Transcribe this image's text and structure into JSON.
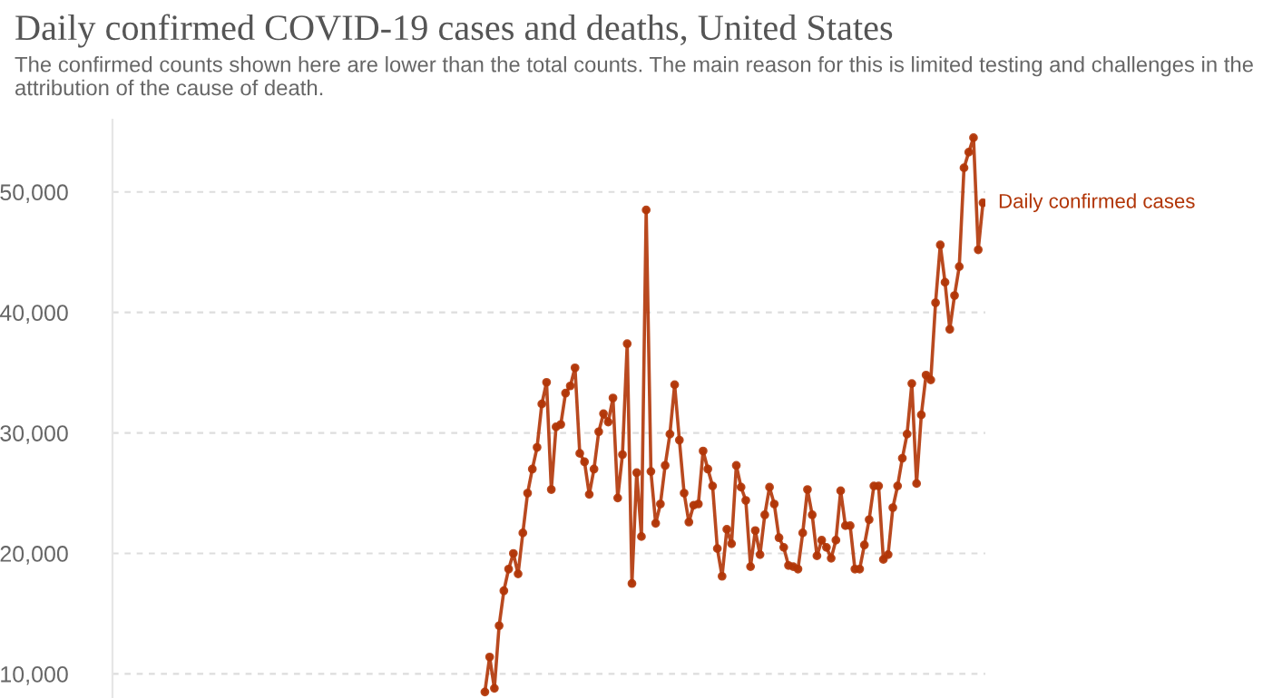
{
  "chart_data": {
    "type": "line",
    "title": "Daily confirmed COVID-19 cases and deaths, United States",
    "subtitle": "The confirmed counts shown here are lower than the total counts. The main reason for this is limited testing and challenges in the attribution of the cause of death.",
    "categories": [
      null,
      null,
      null,
      null,
      null,
      null,
      null,
      null,
      null,
      null,
      null,
      null,
      null,
      null,
      null,
      null,
      null,
      null,
      null,
      null,
      null,
      null,
      null,
      null,
      null,
      null,
      null,
      null,
      null,
      null,
      null,
      null,
      null,
      null,
      null,
      null,
      null,
      null,
      null,
      null,
      null,
      null,
      null,
      null,
      null,
      null,
      null,
      null,
      null,
      null,
      null,
      null,
      null,
      null,
      null,
      null,
      null,
      null,
      null,
      null,
      null,
      null,
      null,
      null,
      null,
      null,
      null,
      null,
      null,
      null,
      null,
      null,
      null,
      null,
      null,
      null,
      null,
      null,
      null,
      null,
      null,
      null,
      null,
      null,
      null,
      null,
      null,
      null,
      null,
      null,
      null,
      null,
      null,
      null,
      null,
      null,
      null,
      null,
      null,
      null,
      null,
      null,
      null,
      null,
      null,
      null,
      null,
      null,
      null,
      null,
      null,
      null,
      null,
      null,
      null,
      null,
      null,
      null,
      null,
      null,
      null,
      null,
      null,
      null,
      null,
      null,
      null,
      null,
      null,
      null,
      null,
      null,
      null,
      null,
      null,
      null,
      null,
      null,
      null,
      null,
      null,
      null,
      null,
      null,
      null,
      null,
      null,
      null,
      null,
      null,
      null,
      null,
      null,
      null,
      null,
      null,
      null,
      null,
      null,
      null,
      null,
      null,
      null,
      null,
      null,
      null,
      null,
      null,
      null,
      null,
      null,
      null,
      null,
      null,
      null,
      null,
      null,
      null,
      null,
      null,
      null,
      null,
      null,
      null
    ],
    "series": [
      {
        "name": "Daily confirmed cases",
        "color": "#b13507",
        "values": [
          null,
          null,
          null,
          null,
          null,
          null,
          null,
          null,
          null,
          null,
          null,
          null,
          null,
          null,
          null,
          null,
          null,
          null,
          null,
          null,
          null,
          null,
          null,
          null,
          null,
          null,
          null,
          null,
          null,
          null,
          null,
          null,
          null,
          null,
          null,
          null,
          null,
          null,
          null,
          null,
          null,
          null,
          null,
          null,
          null,
          null,
          null,
          null,
          null,
          null,
          null,
          null,
          null,
          null,
          null,
          null,
          null,
          null,
          null,
          null,
          null,
          null,
          null,
          null,
          null,
          null,
          null,
          null,
          null,
          null,
          null,
          null,
          null,
          null,
          null,
          null,
          null,
          null,
          8500,
          11400,
          8800,
          14000,
          16900,
          18700,
          20000,
          18300,
          21700,
          25000,
          27000,
          28800,
          32400,
          34200,
          25300,
          30500,
          30700,
          33300,
          33900,
          35400,
          28300,
          27600,
          24900,
          27000,
          30100,
          31600,
          30900,
          32900,
          24600,
          28200,
          37400,
          17500,
          26700,
          21400,
          48500,
          26800,
          22500,
          24100,
          27300,
          29900,
          34000,
          29400,
          25000,
          22600,
          24000,
          24100,
          28500,
          27000,
          25600,
          20400,
          18100,
          22000,
          20800,
          27300,
          25500,
          24400,
          18900,
          21900,
          19900,
          23200,
          25500,
          24100,
          21300,
          20500,
          19000,
          18900,
          18700,
          21700,
          25300,
          23200,
          19800,
          21100,
          20500,
          19600,
          21100,
          25200,
          22300,
          22300,
          18700,
          18700,
          20700,
          22800,
          25600,
          25600,
          19500,
          19900,
          23800,
          25600,
          27900,
          29900,
          34100,
          25800,
          31500,
          34800,
          34400,
          40800,
          45600,
          42500,
          38600,
          41400,
          43800,
          52000,
          53300,
          54500,
          45200,
          49100
        ]
      }
    ],
    "ylim": [
      8000,
      56000
    ],
    "yticks": [
      {
        "value": 10000,
        "label": "10,000"
      },
      {
        "value": 20000,
        "label": "20,000"
      },
      {
        "value": 30000,
        "label": "30,000"
      },
      {
        "value": 40000,
        "label": "40,000"
      },
      {
        "value": 50000,
        "label": "50,000"
      }
    ],
    "tick_labels": "y",
    "grid": "y",
    "marker": "circle",
    "line_style": "solid",
    "legend": false
  }
}
